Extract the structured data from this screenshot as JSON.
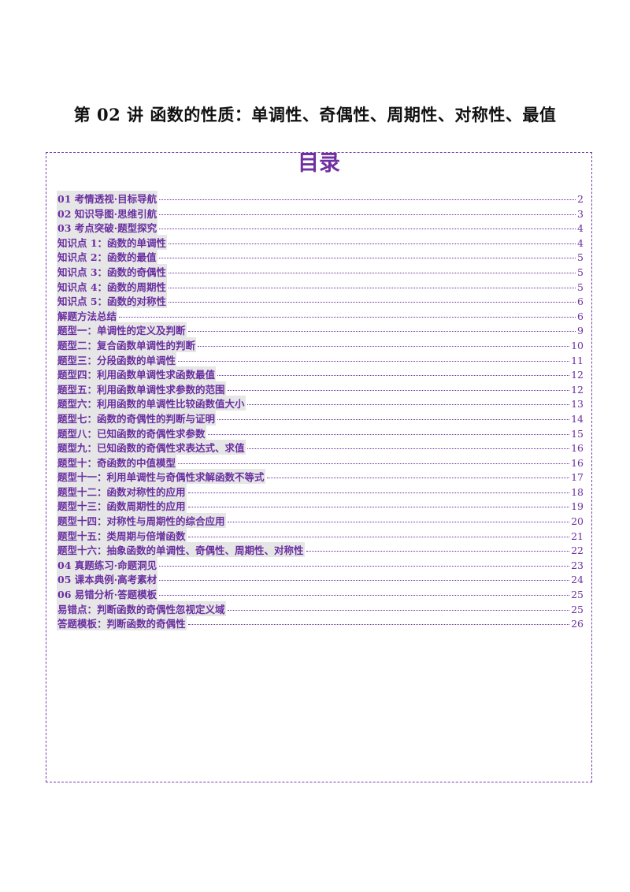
{
  "document": {
    "title": "第 02 讲 函数的性质：单调性、奇偶性、周期性、对称性、最值"
  },
  "toc": {
    "heading": "目录",
    "entries": [
      {
        "label": "01 考情透视·目标导航",
        "page": "2"
      },
      {
        "label": "02 知识导图·思维引航",
        "page": "3"
      },
      {
        "label": "03 考点突破·题型探究",
        "page": "4"
      },
      {
        "label": "知识点 1：函数的单调性",
        "page": "4"
      },
      {
        "label": "知识点 2：函数的最值",
        "page": "5"
      },
      {
        "label": "知识点 3：函数的奇偶性",
        "page": "5"
      },
      {
        "label": "知识点 4：函数的周期性",
        "page": "5"
      },
      {
        "label": "知识点 5：函数的对称性",
        "page": "6"
      },
      {
        "label": "解题方法总结",
        "page": "6"
      },
      {
        "label": "题型一：单调性的定义及判断",
        "page": "9"
      },
      {
        "label": "题型二：复合函数单调性的判断",
        "page": "10"
      },
      {
        "label": "题型三：分段函数的单调性",
        "page": "11"
      },
      {
        "label": "题型四：利用函数单调性求函数最值",
        "page": "12"
      },
      {
        "label": "题型五：利用函数单调性求参数的范围",
        "page": "12"
      },
      {
        "label": "题型六：利用函数的单调性比较函数值大小",
        "page": "13"
      },
      {
        "label": "题型七：函数的奇偶性的判断与证明",
        "page": "14"
      },
      {
        "label": "题型八：已知函数的奇偶性求参数",
        "page": "15"
      },
      {
        "label": "题型九：已知函数的奇偶性求表达式、求值",
        "page": "16"
      },
      {
        "label": "题型十：奇函数的中值模型",
        "page": "16"
      },
      {
        "label": "题型十一：利用单调性与奇偶性求解函数不等式",
        "page": "17"
      },
      {
        "label": "题型十二：函数对称性的应用",
        "page": "18"
      },
      {
        "label": "题型十三：函数周期性的应用",
        "page": "19"
      },
      {
        "label": "题型十四：对称性与周期性的综合应用",
        "page": "20"
      },
      {
        "label": "题型十五：类周期与倍增函数",
        "page": "21"
      },
      {
        "label": "题型十六：抽象函数的单调性、奇偶性、周期性、对称性",
        "page": "22"
      },
      {
        "label": "04 真题练习·命题洞见",
        "page": "23"
      },
      {
        "label": "05 课本典例·高考素材",
        "page": "24"
      },
      {
        "label": "06 易错分析·答题模板",
        "page": "25"
      },
      {
        "label": "易错点：判断函数的奇偶性忽视定义域",
        "page": "25"
      },
      {
        "label": "答题模板：判断函数的奇偶性",
        "page": "26"
      }
    ]
  },
  "colors": {
    "accent": "#7030a0",
    "link": "#6a2fa0",
    "highlight": "#e6e6e6",
    "border": "#7a3fb0"
  }
}
